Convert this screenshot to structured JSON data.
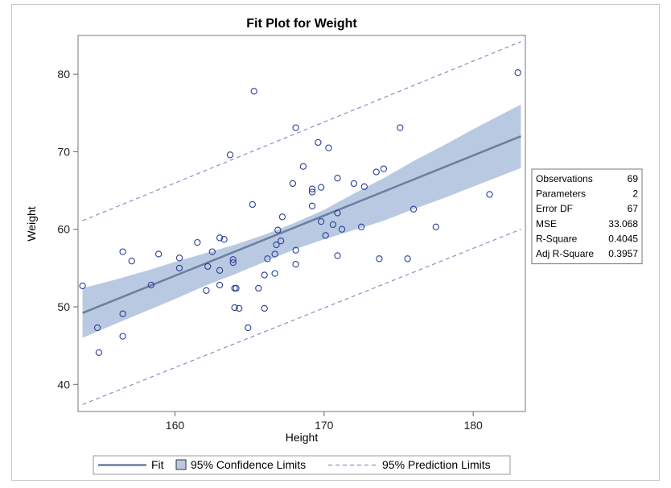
{
  "chart_data": {
    "type": "scatter",
    "title": "Fit Plot for Weight",
    "xlabel": "Height",
    "ylabel": "Weight",
    "xlim": [
      153.5,
      183.5
    ],
    "ylim": [
      36.5,
      85
    ],
    "xticks": [
      160,
      170,
      180
    ],
    "yticks": [
      40,
      50,
      60,
      70,
      80
    ],
    "fit_line": {
      "x": [
        153.8,
        183.2
      ],
      "y": [
        49.2,
        72.0
      ]
    },
    "confidence_band": {
      "x": [
        153.8,
        156,
        158,
        160,
        162,
        164,
        166,
        168,
        170,
        172,
        174,
        176,
        178,
        180,
        183.2
      ],
      "lower": [
        46.0,
        47.8,
        49.4,
        51.0,
        52.7,
        54.2,
        55.8,
        57.4,
        58.7,
        59.9,
        61.1,
        62.6,
        64.0,
        65.5,
        67.9
      ],
      "upper": [
        52.4,
        53.5,
        54.6,
        55.8,
        56.9,
        58.0,
        59.3,
        60.8,
        62.5,
        64.6,
        66.6,
        68.8,
        70.8,
        72.9,
        76.1
      ]
    },
    "prediction_limits": {
      "x": [
        153.8,
        183.2
      ],
      "lower": [
        37.4,
        60.0
      ],
      "upper": [
        61.1,
        84.2
      ]
    },
    "points": [
      {
        "x": 153.8,
        "y": 52.7
      },
      {
        "x": 154.8,
        "y": 47.3
      },
      {
        "x": 154.9,
        "y": 44.1
      },
      {
        "x": 156.5,
        "y": 57.1
      },
      {
        "x": 156.5,
        "y": 49.1
      },
      {
        "x": 156.5,
        "y": 46.2
      },
      {
        "x": 157.1,
        "y": 55.9
      },
      {
        "x": 158.4,
        "y": 52.8
      },
      {
        "x": 158.9,
        "y": 56.8
      },
      {
        "x": 160.3,
        "y": 56.3
      },
      {
        "x": 160.3,
        "y": 55.0
      },
      {
        "x": 161.5,
        "y": 58.3
      },
      {
        "x": 162.1,
        "y": 52.1
      },
      {
        "x": 162.2,
        "y": 55.2
      },
      {
        "x": 162.5,
        "y": 57.1
      },
      {
        "x": 163.0,
        "y": 58.9
      },
      {
        "x": 163.0,
        "y": 54.7
      },
      {
        "x": 163.0,
        "y": 52.8
      },
      {
        "x": 163.3,
        "y": 58.7
      },
      {
        "x": 163.7,
        "y": 69.6
      },
      {
        "x": 163.9,
        "y": 56.1
      },
      {
        "x": 163.9,
        "y": 55.7
      },
      {
        "x": 164.0,
        "y": 52.4
      },
      {
        "x": 164.1,
        "y": 52.4
      },
      {
        "x": 164.0,
        "y": 49.9
      },
      {
        "x": 164.3,
        "y": 49.8
      },
      {
        "x": 164.9,
        "y": 47.3
      },
      {
        "x": 165.2,
        "y": 63.2
      },
      {
        "x": 165.3,
        "y": 77.8
      },
      {
        "x": 165.6,
        "y": 52.4
      },
      {
        "x": 166.0,
        "y": 54.1
      },
      {
        "x": 166.0,
        "y": 49.8
      },
      {
        "x": 166.2,
        "y": 56.2
      },
      {
        "x": 166.7,
        "y": 54.3
      },
      {
        "x": 166.7,
        "y": 56.8
      },
      {
        "x": 166.8,
        "y": 58.0
      },
      {
        "x": 166.9,
        "y": 59.9
      },
      {
        "x": 167.1,
        "y": 58.5
      },
      {
        "x": 167.2,
        "y": 61.6
      },
      {
        "x": 167.9,
        "y": 65.9
      },
      {
        "x": 168.1,
        "y": 73.1
      },
      {
        "x": 168.1,
        "y": 57.3
      },
      {
        "x": 168.1,
        "y": 55.5
      },
      {
        "x": 168.6,
        "y": 68.1
      },
      {
        "x": 169.2,
        "y": 65.2
      },
      {
        "x": 169.2,
        "y": 64.8
      },
      {
        "x": 169.2,
        "y": 63.0
      },
      {
        "x": 169.6,
        "y": 71.2
      },
      {
        "x": 169.8,
        "y": 65.4
      },
      {
        "x": 169.8,
        "y": 61.0
      },
      {
        "x": 170.1,
        "y": 59.2
      },
      {
        "x": 170.3,
        "y": 70.5
      },
      {
        "x": 170.6,
        "y": 60.6
      },
      {
        "x": 170.9,
        "y": 66.6
      },
      {
        "x": 170.9,
        "y": 62.1
      },
      {
        "x": 170.9,
        "y": 56.6
      },
      {
        "x": 171.2,
        "y": 60.0
      },
      {
        "x": 172.0,
        "y": 65.9
      },
      {
        "x": 172.5,
        "y": 60.3
      },
      {
        "x": 172.7,
        "y": 65.5
      },
      {
        "x": 173.5,
        "y": 67.4
      },
      {
        "x": 173.7,
        "y": 56.2
      },
      {
        "x": 174.0,
        "y": 67.8
      },
      {
        "x": 175.1,
        "y": 73.1
      },
      {
        "x": 175.6,
        "y": 56.2
      },
      {
        "x": 176.0,
        "y": 62.6
      },
      {
        "x": 177.5,
        "y": 60.3
      },
      {
        "x": 181.1,
        "y": 64.5
      },
      {
        "x": 183.0,
        "y": 80.2
      }
    ],
    "stats_table": [
      {
        "label": "Observations",
        "value": "69"
      },
      {
        "label": "Parameters",
        "value": "2"
      },
      {
        "label": "Error DF",
        "value": "67"
      },
      {
        "label": "MSE",
        "value": "33.068"
      },
      {
        "label": "R-Square",
        "value": "0.4045"
      },
      {
        "label": "Adj R-Square",
        "value": "0.3957"
      }
    ],
    "legend": {
      "placement": "bottom",
      "entries": [
        {
          "name": "fit",
          "label": "Fit"
        },
        {
          "name": "confidence",
          "label": "95% Confidence Limits"
        },
        {
          "name": "prediction",
          "label": "95% Prediction Limits"
        }
      ]
    },
    "colors": {
      "fit": "#6b7e9e",
      "band": "#b9c9e2",
      "prediction": "#8e8ec0",
      "marker": "#2b3f96",
      "axis": "#666666"
    },
    "grid": false
  }
}
